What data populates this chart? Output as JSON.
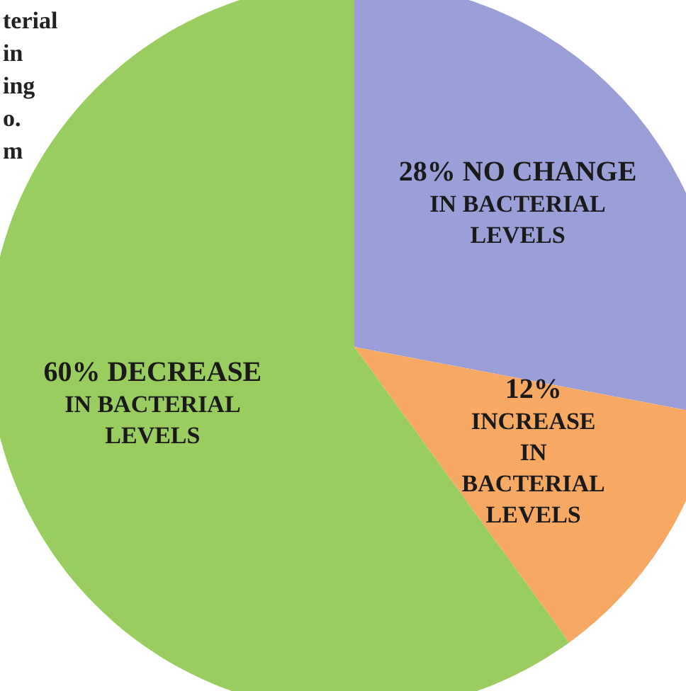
{
  "chart_data": {
    "type": "pie",
    "categories": [
      "NO CHANGE\nIN BACTERIAL\nLEVELS",
      "\nINCREASE\nIN\nBACTERIAL\nLEVELS",
      "DECREASE\nIN BACTERIAL\nLEVELS"
    ],
    "values": [
      28,
      12,
      60
    ],
    "colors": [
      "#9a9fd8",
      "#f7a862",
      "#9acd5f"
    ],
    "value_labels": [
      "28%",
      "12%",
      "60%"
    ],
    "annotations": [
      "terial",
      "in",
      "ing",
      "o.",
      "m"
    ]
  }
}
